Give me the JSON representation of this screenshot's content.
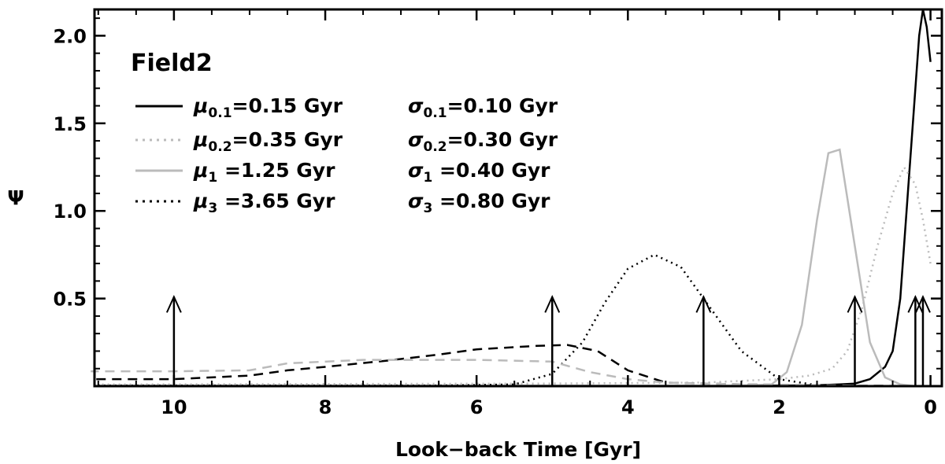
{
  "chart_data": {
    "type": "line",
    "panel_label": "Field2",
    "xlabel": "Look−back Time [Gyr]",
    "ylabel": "Ψ",
    "xlim": [
      11.05,
      -0.15
    ],
    "ylim": [
      0,
      2.15
    ],
    "x_ticks": [
      10,
      8,
      6,
      4,
      2,
      0
    ],
    "y_ticks": [
      0.5,
      1.0,
      1.5,
      2.0
    ],
    "x_tick_labels": [
      "10",
      "8",
      "6",
      "4",
      "2",
      "0"
    ],
    "y_tick_labels": [
      "0.5",
      "1.0",
      "1.5",
      "2.0"
    ],
    "legend": [
      {
        "mu_sym": "μ",
        "mu_sub": "0.1",
        "mu_val": "=0.15 Gyr",
        "sig_sym": "σ",
        "sig_sub": "0.1",
        "sig_val": "=0.10 Gyr",
        "style": "solid-black"
      },
      {
        "mu_sym": "μ",
        "mu_sub": "0.2",
        "mu_val": "=0.35 Gyr",
        "sig_sym": "σ",
        "sig_sub": "0.2",
        "sig_val": "=0.30 Gyr",
        "style": "dotted-gray"
      },
      {
        "mu_sym": "μ",
        "mu_sub": "1",
        "mu_val": " =1.25 Gyr",
        "sig_sym": "σ",
        "sig_sub": "1",
        "sig_val": " =0.40 Gyr",
        "style": "solid-gray"
      },
      {
        "mu_sym": "μ",
        "mu_sub": "3",
        "mu_val": " =3.65 Gyr",
        "sig_sym": "σ",
        "sig_sub": "3",
        "sig_val": " =0.80 Gyr",
        "style": "dotted-black"
      }
    ],
    "series": [
      {
        "style": "solid-black",
        "color": "#000000",
        "x": [
          0.0,
          0.05,
          0.1,
          0.15,
          0.2,
          0.3,
          0.4,
          0.5,
          0.6,
          0.8,
          1.0,
          1.2,
          1.5,
          2.0,
          3.0,
          5.0,
          8.0,
          11.0
        ],
        "y": [
          1.85,
          2.05,
          2.15,
          2.0,
          1.7,
          1.1,
          0.5,
          0.2,
          0.11,
          0.04,
          0.015,
          0.01,
          0.005,
          0.003,
          0.002,
          0.002,
          0.002,
          0.002
        ]
      },
      {
        "style": "dotted-gray",
        "color": "#bbbbbb",
        "x": [
          0.0,
          0.1,
          0.2,
          0.35,
          0.5,
          0.7,
          0.9,
          1.1,
          1.3,
          1.6,
          2.0,
          3.0,
          5.0,
          11.0
        ],
        "y": [
          0.7,
          0.95,
          1.15,
          1.25,
          1.1,
          0.8,
          0.45,
          0.2,
          0.1,
          0.06,
          0.04,
          0.02,
          0.015,
          0.01
        ]
      },
      {
        "style": "solid-gray",
        "color": "#bbbbbb",
        "x": [
          0.2,
          0.4,
          0.6,
          0.8,
          1.0,
          1.2,
          1.35,
          1.5,
          1.7,
          1.9,
          2.1,
          2.5,
          3.0,
          11.0
        ],
        "y": [
          0.0,
          0.01,
          0.05,
          0.25,
          0.8,
          1.35,
          1.33,
          0.95,
          0.35,
          0.08,
          0.01,
          0.003,
          0.003,
          0.003
        ]
      },
      {
        "style": "dotted-black",
        "color": "#000000",
        "x": [
          1.5,
          2.0,
          2.5,
          3.0,
          3.3,
          3.65,
          4.0,
          4.3,
          4.6,
          5.0,
          5.5,
          6.5,
          11.0
        ],
        "y": [
          0.005,
          0.04,
          0.2,
          0.5,
          0.68,
          0.75,
          0.67,
          0.48,
          0.25,
          0.07,
          0.01,
          0.003,
          0.003
        ]
      },
      {
        "style": "dashed-black",
        "color": "#000000",
        "x": [
          0.0,
          1.5,
          2.5,
          3.5,
          4.0,
          4.4,
          4.8,
          5.2,
          6.0,
          6.5,
          7.2,
          8.0,
          8.5,
          9.0,
          10.0,
          11.1
        ],
        "y": [
          0.0,
          0.005,
          0.01,
          0.02,
          0.09,
          0.2,
          0.235,
          0.23,
          0.21,
          0.18,
          0.145,
          0.11,
          0.09,
          0.06,
          0.04,
          0.04
        ]
      },
      {
        "style": "dashed-gray",
        "color": "#bbbbbb",
        "x": [
          0.0,
          1.5,
          2.5,
          3.5,
          4.0,
          4.5,
          5.0,
          6.0,
          6.5,
          7.5,
          8.5,
          9.0,
          10.0,
          11.1
        ],
        "y": [
          0.0,
          0.005,
          0.01,
          0.02,
          0.04,
          0.08,
          0.14,
          0.15,
          0.15,
          0.15,
          0.13,
          0.09,
          0.085,
          0.085
        ]
      }
    ],
    "arrows": [
      {
        "x": 10.0,
        "y0": 0,
        "y1": 0.51
      },
      {
        "x": 5.0,
        "y0": 0,
        "y1": 0.51
      },
      {
        "x": 3.0,
        "y0": 0,
        "y1": 0.51
      },
      {
        "x": 1.0,
        "y0": 0,
        "y1": 0.51
      },
      {
        "x": 0.2,
        "y0": 0,
        "y1": 0.51
      },
      {
        "x": 0.1,
        "y0": 0,
        "y1": 0.51
      }
    ],
    "grid": false
  }
}
